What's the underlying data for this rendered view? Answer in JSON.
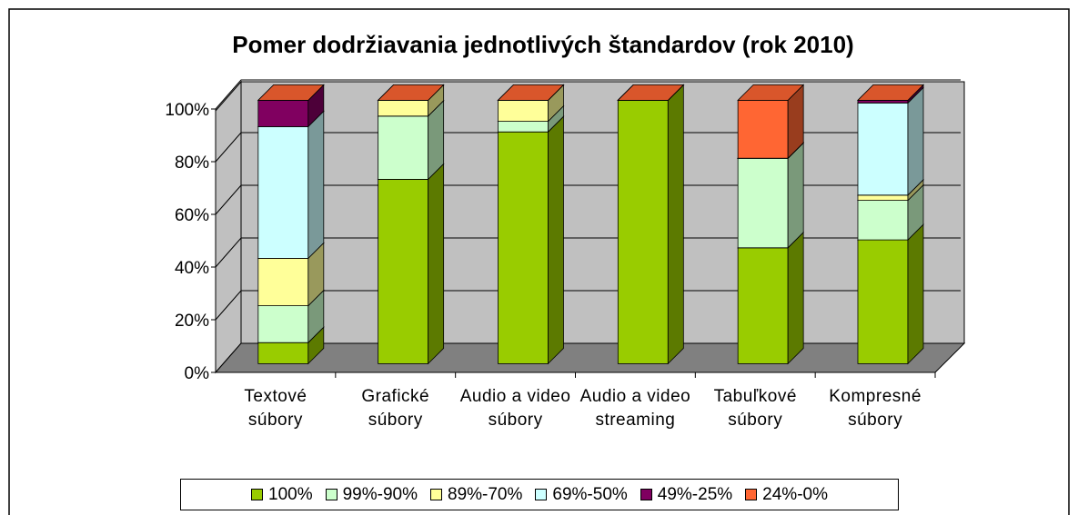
{
  "chart_data": {
    "type": "bar3d_stacked",
    "title": "Pomer dodržiavania jednotlivých štandardov (rok 2010)",
    "categories": [
      "Textové súbory",
      "Grafické súbory",
      "Audio a video súbory",
      "Audio a video streaming",
      "Tabuľkové súbory",
      "Kompresné súbory"
    ],
    "series": [
      {
        "name": "100%",
        "color": "#99cc00",
        "values": [
          8,
          70,
          88,
          100,
          44,
          47
        ]
      },
      {
        "name": "99%-90%",
        "color": "#ccffcc",
        "values": [
          14,
          24,
          4,
          0,
          34,
          15
        ]
      },
      {
        "name": "89%-70%",
        "color": "#ffff99",
        "values": [
          18,
          6,
          8,
          0,
          0,
          2
        ]
      },
      {
        "name": "69%-50%",
        "color": "#ccffff",
        "values": [
          50,
          0,
          0,
          0,
          0,
          35
        ]
      },
      {
        "name": "49%-25%",
        "color": "#800060",
        "values": [
          10,
          0,
          0,
          0,
          0,
          1
        ]
      },
      {
        "name": "24%-0%",
        "color": "#ff6633",
        "values": [
          0,
          0,
          0,
          0,
          22,
          0
        ]
      }
    ],
    "ylim": [
      0,
      100
    ],
    "yticks": [
      {
        "value": 0,
        "label": "0%"
      },
      {
        "value": 20,
        "label": "20%"
      },
      {
        "value": 40,
        "label": "40%"
      },
      {
        "value": 60,
        "label": "60%"
      },
      {
        "value": 80,
        "label": "80%"
      },
      {
        "value": 100,
        "label": "100%"
      }
    ],
    "grid": true,
    "legend": "bottom"
  }
}
